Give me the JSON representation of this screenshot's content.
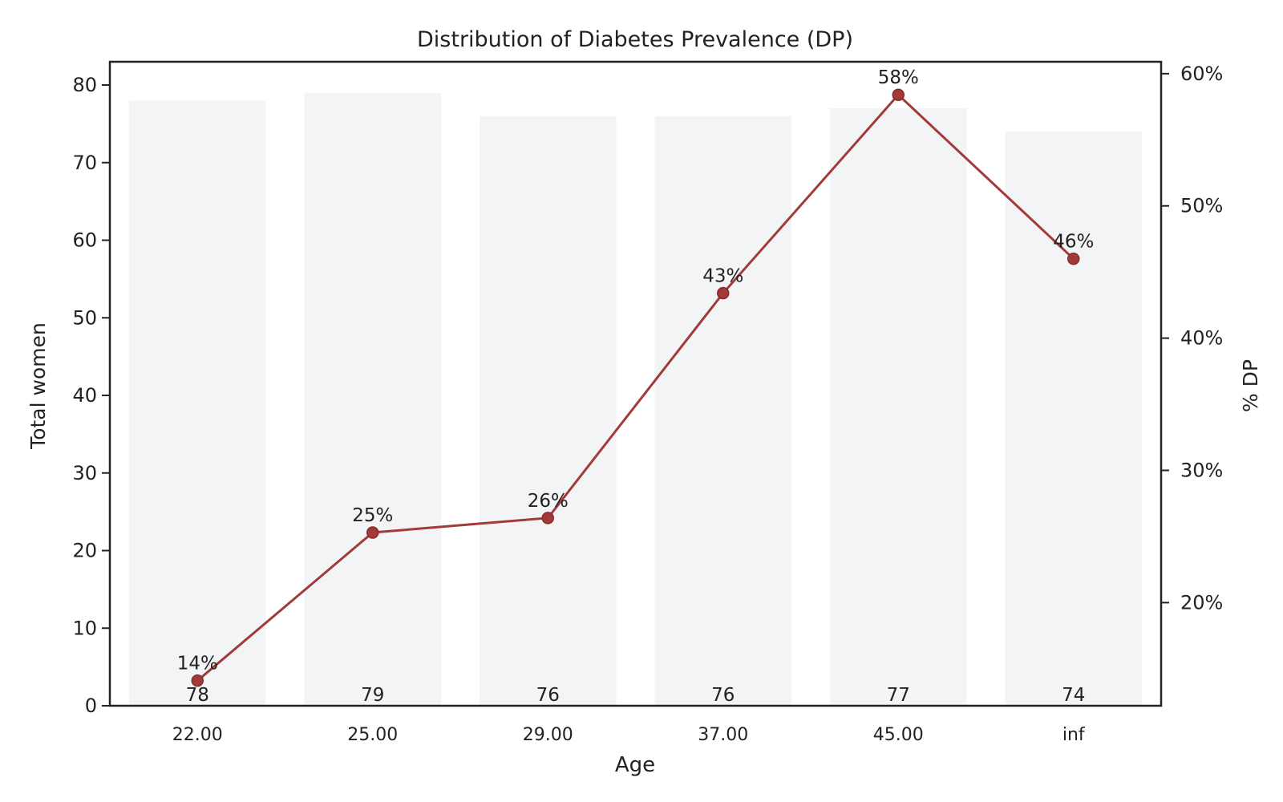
{
  "chart_data": {
    "type": "bar",
    "title": "Distribution of Diabetes Prevalence (DP)",
    "xlabel": "Age",
    "ylabel": "Total women",
    "y2label": "% DP",
    "categories": [
      "22.00",
      "25.00",
      "29.00",
      "37.00",
      "45.00",
      "inf"
    ],
    "bars": {
      "values": [
        78,
        79,
        76,
        76,
        77,
        74
      ],
      "color": "#f3f4f6"
    },
    "line": {
      "axis": "right",
      "values": [
        14.1,
        25.3,
        26.4,
        43.4,
        58.4,
        46.0
      ],
      "labels": [
        "14%",
        "25%",
        "26%",
        "43%",
        "58%",
        "46%"
      ],
      "color": "#a33a3a"
    },
    "ylim": [
      0,
      83
    ],
    "y2lim": [
      12.2,
      60.9
    ],
    "yticks": [
      0,
      10,
      20,
      30,
      40,
      50,
      60,
      70,
      80
    ],
    "y2ticks": [
      20,
      30,
      40,
      50,
      60
    ],
    "y2tick_labels": [
      "20%",
      "30%",
      "40%",
      "50%",
      "60%"
    ],
    "grid": false
  }
}
